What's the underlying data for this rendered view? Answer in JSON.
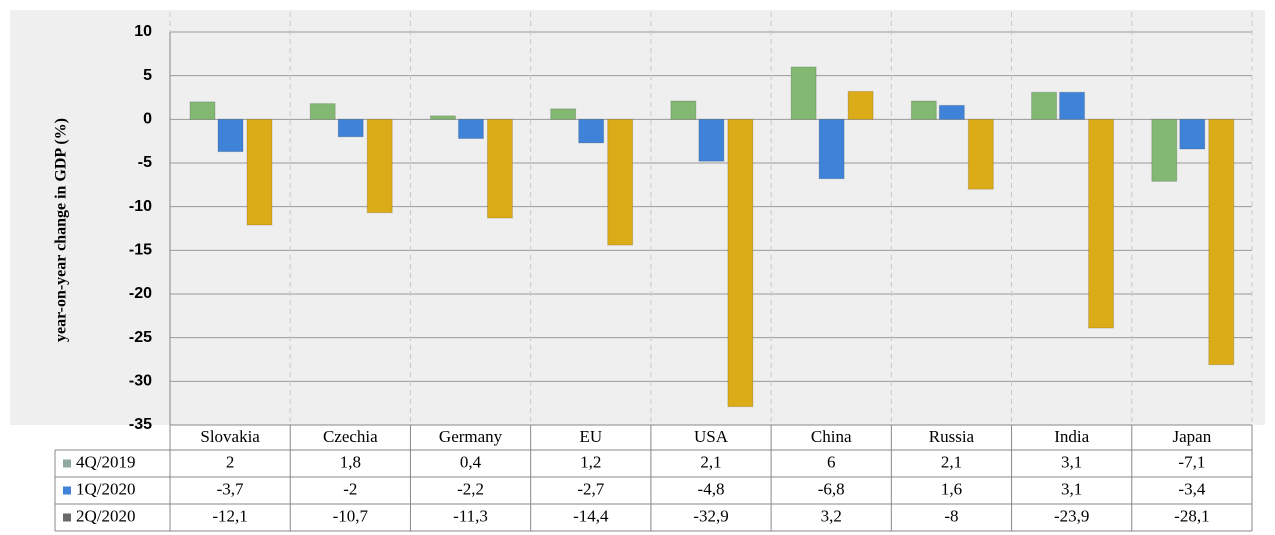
{
  "chart_data": {
    "type": "bar",
    "y_label": "year-on-year change in GDP (%)",
    "categories": [
      "Slovakia",
      "Czechia",
      "Germany",
      "EU",
      "USA",
      "China",
      "Russia",
      "India",
      "Japan"
    ],
    "series": [
      {
        "name": "4Q/2019",
        "color": "#82b872",
        "key_color": "#8fa8a0",
        "values": [
          2,
          1.8,
          0.4,
          1.2,
          2.1,
          6,
          2.1,
          3.1,
          -7.1
        ],
        "value_labels": [
          "2",
          "1,8",
          "0,4",
          "1,2",
          "2,1",
          "6",
          "2,1",
          "3,1",
          "-7,1"
        ]
      },
      {
        "name": "1Q/2020",
        "color": "#3f83d8",
        "key_color": "#3f83d8",
        "values": [
          -3.7,
          -2,
          -2.2,
          -2.7,
          -4.8,
          -6.8,
          1.6,
          3.1,
          -3.4
        ],
        "value_labels": [
          "-3,7",
          "-2",
          "-2,2",
          "-2,7",
          "-4,8",
          "-6,8",
          "1,6",
          "3,1",
          "-3,4"
        ]
      },
      {
        "name": "2Q/2020",
        "color": "#dcac18",
        "key_color": "#6a6a6a",
        "values": [
          -12.1,
          -10.7,
          -11.3,
          -14.4,
          -32.9,
          3.2,
          -8,
          -23.9,
          -28.1
        ],
        "value_labels": [
          "-12,1",
          "-10,7",
          "-11,3",
          "-14,4",
          "-32,9",
          "3,2",
          "-8",
          "-23,9",
          "-28,1"
        ]
      }
    ],
    "ylim": [
      -35,
      10
    ],
    "yticks": [
      10,
      5,
      0,
      -5,
      -10,
      -15,
      -20,
      -25,
      -30,
      -35
    ],
    "grid": true
  }
}
